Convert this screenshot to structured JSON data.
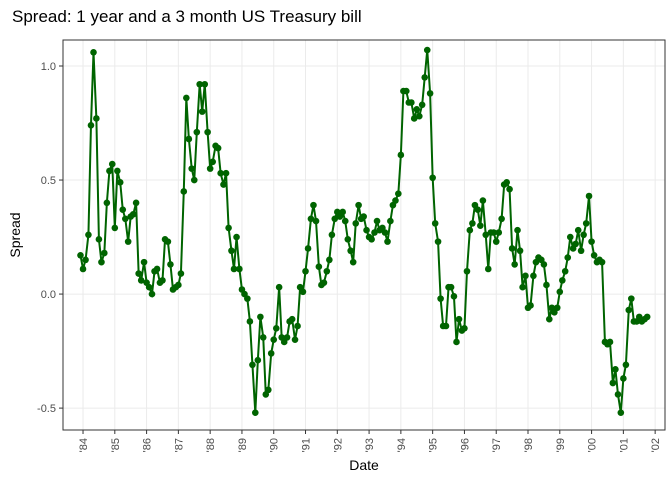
{
  "chart_data": {
    "type": "line",
    "title": "Spread: 1 year and a 3 month US Treasury bill",
    "x_label": "Date",
    "y_label": "Spread",
    "x": [
      1983.92,
      1984.0,
      1984.08,
      1984.17,
      1984.25,
      1984.33,
      1984.42,
      1984.5,
      1984.58,
      1984.67,
      1984.75,
      1984.83,
      1984.92,
      1985.0,
      1985.08,
      1985.17,
      1985.25,
      1985.33,
      1985.42,
      1985.5,
      1985.58,
      1985.67,
      1985.75,
      1985.83,
      1985.92,
      1986.0,
      1986.08,
      1986.17,
      1986.25,
      1986.33,
      1986.42,
      1986.5,
      1986.58,
      1986.67,
      1986.75,
      1986.83,
      1986.92,
      1987.0,
      1987.08,
      1987.17,
      1987.25,
      1987.33,
      1987.42,
      1987.5,
      1987.58,
      1987.67,
      1987.75,
      1987.83,
      1987.92,
      1988.0,
      1988.08,
      1988.17,
      1988.25,
      1988.33,
      1988.42,
      1988.5,
      1988.58,
      1988.67,
      1988.75,
      1988.83,
      1988.92,
      1989.0,
      1989.08,
      1989.17,
      1989.25,
      1989.33,
      1989.42,
      1989.5,
      1989.58,
      1989.67,
      1989.75,
      1989.83,
      1989.92,
      1990.0,
      1990.08,
      1990.17,
      1990.25,
      1990.33,
      1990.42,
      1990.5,
      1990.58,
      1990.67,
      1990.75,
      1990.83,
      1990.92,
      1991.0,
      1991.08,
      1991.17,
      1991.25,
      1991.33,
      1991.42,
      1991.5,
      1991.58,
      1991.67,
      1991.75,
      1991.83,
      1991.92,
      1992.0,
      1992.08,
      1992.17,
      1992.25,
      1992.33,
      1992.42,
      1992.5,
      1992.58,
      1992.67,
      1992.75,
      1992.83,
      1992.92,
      1993.0,
      1993.08,
      1993.17,
      1993.25,
      1993.33,
      1993.42,
      1993.5,
      1993.58,
      1993.67,
      1993.75,
      1993.83,
      1993.92,
      1994.0,
      1994.08,
      1994.17,
      1994.25,
      1994.33,
      1994.42,
      1994.5,
      1994.58,
      1994.67,
      1994.75,
      1994.83,
      1994.92,
      1995.0,
      1995.08,
      1995.17,
      1995.25,
      1995.33,
      1995.42,
      1995.5,
      1995.58,
      1995.67,
      1995.75,
      1995.83,
      1995.92,
      1996.0,
      1996.08,
      1996.17,
      1996.25,
      1996.33,
      1996.42,
      1996.5,
      1996.58,
      1996.67,
      1996.75,
      1996.83,
      1996.92,
      1997.0,
      1997.08,
      1997.17,
      1997.25,
      1997.33,
      1997.42,
      1997.5,
      1997.58,
      1997.67,
      1997.75,
      1997.83,
      1997.92,
      1998.0,
      1998.08,
      1998.17,
      1998.25,
      1998.33,
      1998.42,
      1998.5,
      1998.58,
      1998.67,
      1998.75,
      1998.83,
      1998.92,
      1999.0,
      1999.08,
      1999.17,
      1999.25,
      1999.33,
      1999.42,
      1999.5,
      1999.58,
      1999.67,
      1999.75,
      1999.83,
      1999.92,
      2000.0,
      2000.08,
      2000.17,
      2000.25,
      2000.33,
      2000.42,
      2000.5,
      2000.58,
      2000.67,
      2000.75,
      2000.83,
      2000.92,
      2001.0,
      2001.08,
      2001.17,
      2001.25,
      2001.33,
      2001.42,
      2001.5,
      2001.58,
      2001.67,
      2001.75
    ],
    "series": [
      {
        "color": "#006400",
        "values": [
          0.17,
          0.11,
          0.15,
          0.26,
          0.74,
          1.06,
          0.77,
          0.24,
          0.14,
          0.18,
          0.4,
          0.54,
          0.57,
          0.29,
          0.54,
          0.49,
          0.37,
          0.33,
          0.23,
          0.34,
          0.35,
          0.4,
          0.09,
          0.06,
          0.14,
          0.05,
          0.03,
          0.0,
          0.1,
          0.11,
          0.05,
          0.06,
          0.24,
          0.23,
          0.13,
          0.02,
          0.03,
          0.04,
          0.09,
          0.45,
          0.86,
          0.68,
          0.55,
          0.5,
          0.71,
          0.92,
          0.8,
          0.92,
          0.71,
          0.55,
          0.58,
          0.65,
          0.64,
          0.53,
          0.48,
          0.53,
          0.29,
          0.19,
          0.11,
          0.25,
          0.11,
          0.02,
          0.0,
          -0.02,
          -0.12,
          -0.31,
          -0.52,
          -0.29,
          -0.1,
          -0.19,
          -0.44,
          -0.42,
          -0.26,
          -0.2,
          -0.15,
          0.03,
          -0.19,
          -0.21,
          -0.19,
          -0.12,
          -0.11,
          -0.2,
          -0.14,
          0.03,
          0.01,
          0.1,
          0.2,
          0.33,
          0.39,
          0.32,
          0.12,
          0.04,
          0.05,
          0.1,
          0.15,
          0.26,
          0.33,
          0.36,
          0.34,
          0.36,
          0.32,
          0.24,
          0.19,
          0.14,
          0.31,
          0.39,
          0.33,
          0.34,
          0.28,
          0.25,
          0.24,
          0.27,
          0.32,
          0.28,
          0.29,
          0.27,
          0.23,
          0.32,
          0.39,
          0.41,
          0.44,
          0.61,
          0.89,
          0.89,
          0.84,
          0.84,
          0.77,
          0.81,
          0.78,
          0.83,
          0.95,
          1.07,
          0.88,
          0.51,
          0.31,
          0.23,
          -0.02,
          -0.14,
          -0.14,
          0.03,
          0.03,
          -0.01,
          -0.21,
          -0.11,
          -0.16,
          -0.15,
          0.1,
          0.28,
          0.31,
          0.39,
          0.37,
          0.3,
          0.41,
          0.26,
          0.11,
          0.27,
          0.27,
          0.23,
          0.27,
          0.33,
          0.48,
          0.49,
          0.46,
          0.2,
          0.13,
          0.28,
          0.19,
          0.03,
          0.08,
          -0.06,
          -0.05,
          0.08,
          0.14,
          0.16,
          0.15,
          0.13,
          0.04,
          -0.11,
          -0.06,
          -0.08,
          -0.06,
          0.01,
          0.06,
          0.1,
          0.16,
          0.25,
          0.2,
          0.22,
          0.28,
          0.19,
          0.26,
          0.31,
          0.43,
          0.23,
          0.17,
          0.14,
          0.15,
          0.14,
          -0.21,
          -0.22,
          -0.21,
          -0.39,
          -0.33,
          -0.44,
          -0.52,
          -0.37,
          -0.31,
          -0.07,
          -0.02,
          -0.12,
          -0.12,
          -0.1,
          -0.12,
          -0.11,
          -0.1
        ]
      }
    ],
    "xlim": [
      1983.37,
      2002.31
    ],
    "ylim": [
      -0.596,
      1.114
    ],
    "xticks": [
      {
        "value": 1984,
        "label": "'84"
      },
      {
        "value": 1985,
        "label": "'85"
      },
      {
        "value": 1986,
        "label": "'86"
      },
      {
        "value": 1987,
        "label": "'87"
      },
      {
        "value": 1988,
        "label": "'88"
      },
      {
        "value": 1989,
        "label": "'89"
      },
      {
        "value": 1990,
        "label": "'90"
      },
      {
        "value": 1991,
        "label": "'91"
      },
      {
        "value": 1992,
        "label": "'92"
      },
      {
        "value": 1993,
        "label": "'93"
      },
      {
        "value": 1994,
        "label": "'94"
      },
      {
        "value": 1995,
        "label": "'95"
      },
      {
        "value": 1996,
        "label": "'96"
      },
      {
        "value": 1997,
        "label": "'97"
      },
      {
        "value": 1998,
        "label": "'98"
      },
      {
        "value": 1999,
        "label": "'99"
      },
      {
        "value": 2000,
        "label": "'00"
      },
      {
        "value": 2001,
        "label": "'01"
      },
      {
        "value": 2002,
        "label": "'02"
      }
    ],
    "yticks": [
      {
        "value": -0.5,
        "label": "-0.5"
      },
      {
        "value": 0,
        "label": "0.0"
      },
      {
        "value": 0.5,
        "label": "0.5"
      },
      {
        "value": 1,
        "label": "1.0"
      }
    ],
    "grid": true
  }
}
